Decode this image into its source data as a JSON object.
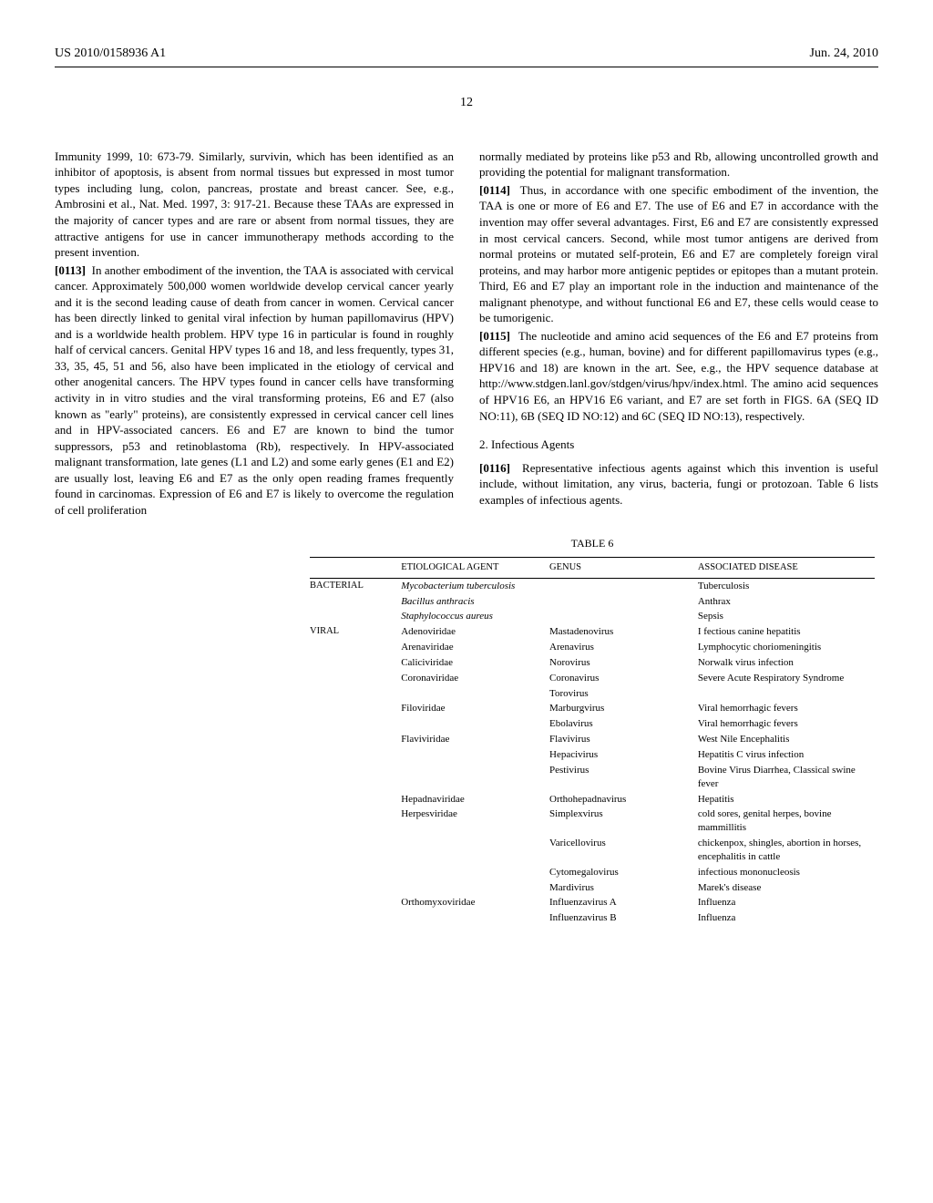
{
  "header": {
    "left": "US 2010/0158936 A1",
    "right": "Jun. 24, 2010"
  },
  "page_number": "12",
  "col1": {
    "p1": "Immunity 1999, 10: 673-79. Similarly, survivin, which has been identified as an inhibitor of apoptosis, is absent from normal tissues but expressed in most tumor types including lung, colon, pancreas, prostate and breast cancer. See, e.g., Ambrosini et al., Nat. Med. 1997, 3: 917-21. Because these TAAs are expressed in the majority of cancer types and are rare or absent from normal tissues, they are attractive antigens for use in cancer immunotherapy methods according to the present invention.",
    "p2_num": "[0113]",
    "p2": "In another embodiment of the invention, the TAA is associated with cervical cancer. Approximately 500,000 women worldwide develop cervical cancer yearly and it is the second leading cause of death from cancer in women. Cervical cancer has been directly linked to genital viral infection by human papillomavirus (HPV) and is a worldwide health problem. HPV type 16 in particular is found in roughly half of cervical cancers. Genital HPV types 16 and 18, and less frequently, types 31, 33, 35, 45, 51 and 56, also have been implicated in the etiology of cervical and other anogenital cancers. The HPV types found in cancer cells have transforming activity in in vitro studies and the viral transforming proteins, E6 and E7 (also known as \"early\" proteins), are consistently expressed in cervical cancer cell lines and in HPV-associated cancers. E6 and E7 are known to bind the tumor suppressors, p53 and retinoblastoma (Rb), respectively. In HPV-associated malignant transformation, late genes (L1 and L2) and some early genes (E1 and E2) are usually lost, leaving E6 and E7 as the only open reading frames frequently found in carcinomas. Expression of E6 and E7 is likely to overcome the regulation of cell proliferation"
  },
  "col2": {
    "p1": "normally mediated by proteins like p53 and Rb, allowing uncontrolled growth and providing the potential for malignant transformation.",
    "p2_num": "[0114]",
    "p2": "Thus, in accordance with one specific embodiment of the invention, the TAA is one or more of E6 and E7. The use of E6 and E7 in accordance with the invention may offer several advantages. First, E6 and E7 are consistently expressed in most cervical cancers. Second, while most tumor antigens are derived from normal proteins or mutated self-protein, E6 and E7 are completely foreign viral proteins, and may harbor more antigenic peptides or epitopes than a mutant protein. Third, E6 and E7 play an important role in the induction and maintenance of the malignant phenotype, and without functional E6 and E7, these cells would cease to be tumorigenic.",
    "p3_num": "[0115]",
    "p3": "The nucleotide and amino acid sequences of the E6 and E7 proteins from different species (e.g., human, bovine) and for different papillomavirus types (e.g., HPV16 and 18) are known in the art. See, e.g., the HPV sequence database at http://www.stdgen.lanl.gov/stdgen/virus/hpv/index.html. The amino acid sequences of HPV16 E6, an HPV16 E6 variant, and E7 are set forth in FIGS. 6A (SEQ ID NO:11), 6B (SEQ ID NO:12) and 6C (SEQ ID NO:13), respectively.",
    "sec_heading": "2. Infectious Agents",
    "p4_num": "[0116]",
    "p4": "Representative infectious agents against which this invention is useful include, without limitation, any virus, bacteria, fungi or protozoan. Table 6 lists examples of infectious agents."
  },
  "table": {
    "title": "TABLE 6",
    "columns": [
      "",
      "ETIOLOGICAL AGENT",
      "GENUS",
      "ASSOCIATED DISEASE"
    ],
    "rows": [
      {
        "cat": "BACTERIAL",
        "agent": "Mycobacterium tuberculosis",
        "agent_italic": true,
        "genus": "",
        "disease": "Tuberculosis"
      },
      {
        "cat": "",
        "agent": "Bacillus anthracis",
        "agent_italic": true,
        "genus": "",
        "disease": "Anthrax"
      },
      {
        "cat": "",
        "agent": "Staphylococcus aureus",
        "agent_italic": true,
        "genus": "",
        "disease": "Sepsis"
      },
      {
        "cat": "VIRAL",
        "agent": "Adenoviridae",
        "genus": "Mastadenovirus",
        "disease": "I fectious canine hepatitis"
      },
      {
        "cat": "",
        "agent": "Arenaviridae",
        "genus": "Arenavirus",
        "disease": "Lymphocytic choriomeningitis"
      },
      {
        "cat": "",
        "agent": "Caliciviridae",
        "genus": "Norovirus",
        "disease": "Norwalk virus infection"
      },
      {
        "cat": "",
        "agent": "Coronaviridae",
        "genus": "Coronavirus",
        "disease": "Severe Acute Respiratory Syndrome"
      },
      {
        "cat": "",
        "agent": "",
        "genus": "Torovirus",
        "disease": ""
      },
      {
        "cat": "",
        "agent": "Filoviridae",
        "genus": "Marburgvirus",
        "disease": "Viral hemorrhagic fevers"
      },
      {
        "cat": "",
        "agent": "",
        "genus": "Ebolavirus",
        "disease": "Viral hemorrhagic fevers"
      },
      {
        "cat": "",
        "agent": "Flaviviridae",
        "genus": "Flavivirus",
        "disease": "West Nile Encephalitis"
      },
      {
        "cat": "",
        "agent": "",
        "genus": "Hepacivirus",
        "disease": "Hepatitis C virus infection"
      },
      {
        "cat": "",
        "agent": "",
        "genus": "Pestivirus",
        "disease": "Bovine Virus Diarrhea, Classical swine fever"
      },
      {
        "cat": "",
        "agent": "Hepadnaviridae",
        "genus": "Orthohepadnavirus",
        "disease": "Hepatitis"
      },
      {
        "cat": "",
        "agent": "Herpesviridae",
        "genus": "Simplexvirus",
        "disease": "cold sores, genital herpes, bovine mammillitis"
      },
      {
        "cat": "",
        "agent": "",
        "genus": "Varicellovirus",
        "disease": "chickenpox, shingles, abortion in horses, encephalitis in cattle"
      },
      {
        "cat": "",
        "agent": "",
        "genus": "Cytomegalovirus",
        "disease": "infectious mononucleosis"
      },
      {
        "cat": "",
        "agent": "",
        "genus": "Mardivirus",
        "disease": "Marek's disease"
      },
      {
        "cat": "",
        "agent": "Orthomyxoviridae",
        "genus": "Influenzavirus A",
        "disease": "Influenza"
      },
      {
        "cat": "",
        "agent": "",
        "genus": "Influenzavirus B",
        "disease": "Influenza"
      }
    ]
  }
}
